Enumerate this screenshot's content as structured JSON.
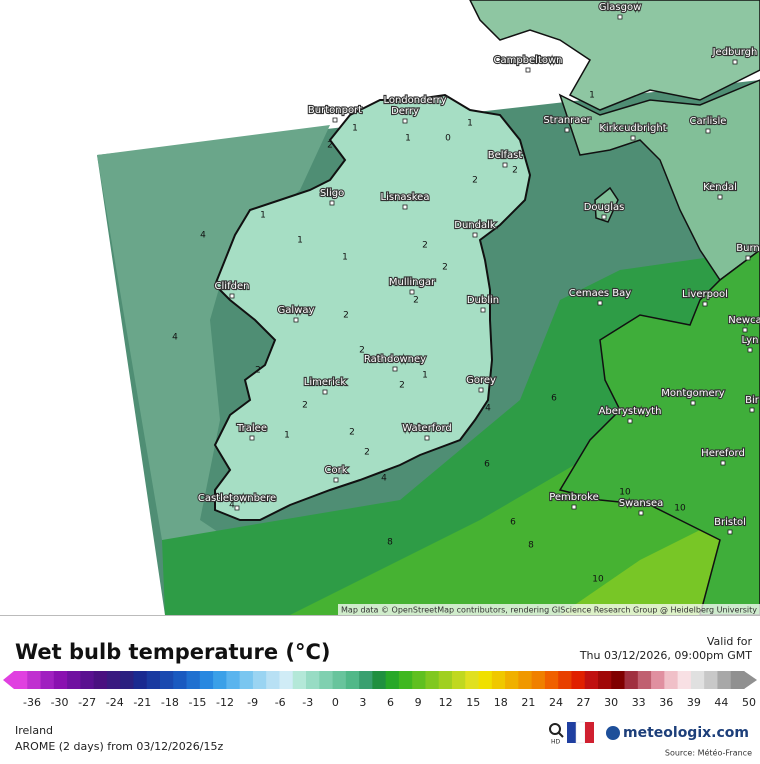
{
  "map": {
    "places": [
      "Glasgow",
      "Jedburgh",
      "Campbeltown",
      "Burtonport",
      "Londonderry",
      "Derry",
      "Stranraer",
      "Kirkcudbright",
      "Carlisle",
      "Belfast",
      "Sligo",
      "Lisnaskea",
      "Kendal",
      "Douglas",
      "Dundalk",
      "Burn",
      "Clifden",
      "Mullingar",
      "Cemaes Bay",
      "Liverpool",
      "Dublin",
      "Galway",
      "Newca",
      "Rathdowney",
      "Lyn",
      "Limerick",
      "Gorey",
      "Montgomery",
      "Aberystwyth",
      "Bir",
      "Tralee",
      "Waterford",
      "Hereford",
      "Cork",
      "Pembroke",
      "Swansea",
      "Bristol",
      "Castletownbere"
    ],
    "contour_labels": [
      "1",
      "1",
      "0",
      "1",
      "2",
      "2",
      "2",
      "1",
      "1",
      "2",
      "2",
      "1",
      "4",
      "4",
      "2",
      "2",
      "2",
      "2",
      "1",
      "2",
      "4",
      "2",
      "1",
      "2",
      "2",
      "4",
      "6",
      "6",
      "6",
      "8",
      "8",
      "10",
      "10",
      "10",
      "1",
      "4"
    ],
    "attribution": "Map data © OpenStreetMap contributors, rendering GIScience Research Group @ Heidelberg University"
  },
  "legend": {
    "title": "Wet bulb temperature (°C)",
    "valid_label": "Valid for",
    "valid_time": "Thu 03/12/2026, 09:00pm GMT",
    "ticks": [
      -36,
      -30,
      -27,
      -24,
      -21,
      -18,
      -15,
      -12,
      -9,
      -6,
      -3,
      0,
      3,
      6,
      9,
      12,
      15,
      18,
      21,
      24,
      27,
      30,
      33,
      36,
      39,
      44,
      50
    ],
    "colors": [
      "#e040e0",
      "#c030d0",
      "#a020c0",
      "#8a10b0",
      "#7010a0",
      "#5a1090",
      "#4a1080",
      "#3a1a80",
      "#2a2080",
      "#1a2a90",
      "#1a3aa0",
      "#1a4ab0",
      "#1a5ac0",
      "#2070d0",
      "#2888e0",
      "#3aa0e8",
      "#5ab4ee",
      "#7ac6f0",
      "#9ad4f2",
      "#b8e0f4",
      "#d0ecf6",
      "#b4e8d8",
      "#98dcc4",
      "#80d0b0",
      "#68c49c",
      "#50b888",
      "#3aa070",
      "#209040",
      "#28a828",
      "#40b820",
      "#60c020",
      "#80c820",
      "#a0d020",
      "#c0d820",
      "#e0e020",
      "#f0e000",
      "#f0c800",
      "#f0b000",
      "#f09800",
      "#f08000",
      "#f06000",
      "#e84000",
      "#e02000",
      "#c01010",
      "#a00808",
      "#800000",
      "#a03040",
      "#c06070",
      "#e090a0",
      "#f0c0c8",
      "#f8e0e4",
      "#e0e0e0",
      "#c8c8c8",
      "#a8a8a8",
      "#909090"
    ]
  },
  "footer": {
    "region": "Ireland",
    "model": "AROME (2 days) from 03/12/2026/15z",
    "hd": "HD",
    "brand": "meteologix.com",
    "source": "Source: Météo-France"
  }
}
